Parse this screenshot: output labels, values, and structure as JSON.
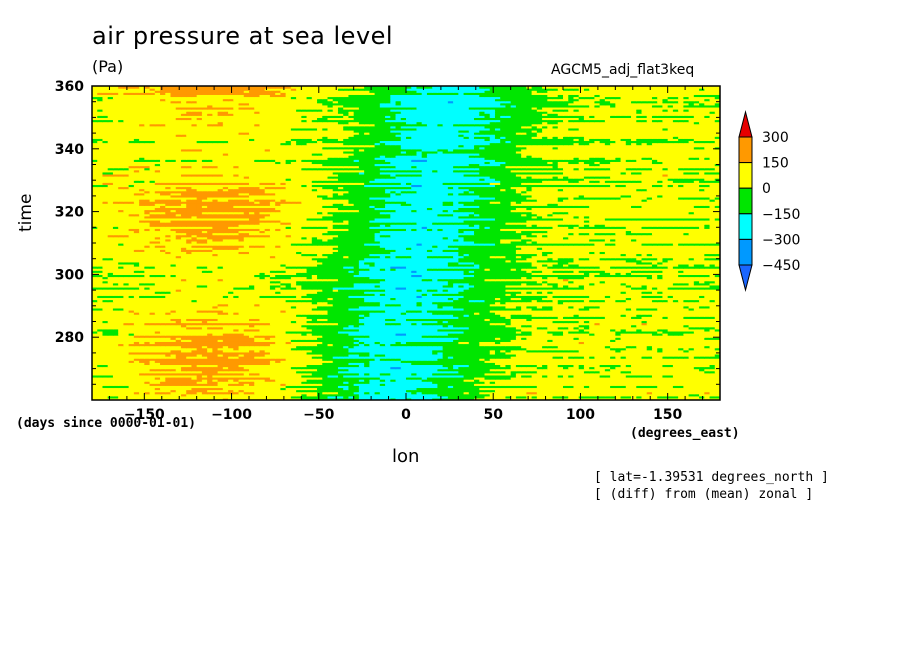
{
  "chart_data": {
    "type": "heatmap",
    "title": "air pressure at sea level",
    "units": "(Pa)",
    "experiment": "AGCM5_adj_flat3keq",
    "xlabel": "lon",
    "ylabel": "time",
    "x_unit_label": "(degrees_east)",
    "y_unit_label": "(days since 0000-01-01)",
    "xlim": [
      -180,
      180
    ],
    "ylim": [
      260,
      360
    ],
    "x_ticks": [
      -150,
      -100,
      -50,
      0,
      50,
      100,
      150
    ],
    "y_ticks": [
      280,
      300,
      320,
      340,
      360
    ],
    "colorbar": {
      "levels": [
        300,
        150,
        0,
        -150,
        -300,
        -450
      ],
      "colors": [
        "#e60000",
        "#ff9900",
        "#ffff00",
        "#00e600",
        "#00ffff",
        "#0099ff",
        "#1a66ff"
      ]
    },
    "annotations": [
      "[ lat=-1.39531 degrees_north ]",
      "[ (diff) from (mean) zonal ]"
    ],
    "pattern": "Zonal anomaly field: mostly yellow/green banded noise in time; negative (cyan/blue) anomalies concentrated near lon -30 to 50, shifting eastward at later times; positive (orange) anomalies near lon -150 to -80."
  }
}
